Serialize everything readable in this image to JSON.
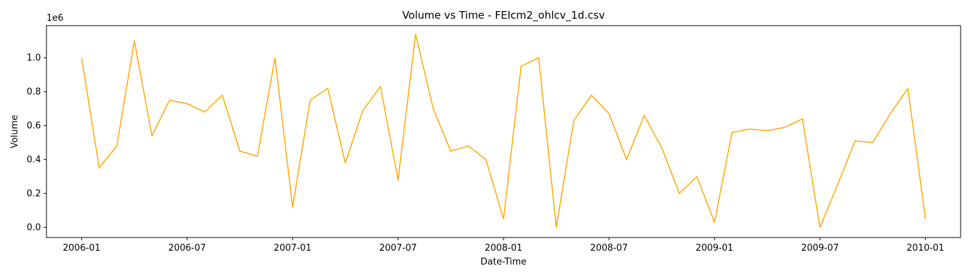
{
  "chart_data": {
    "type": "line",
    "title": "Volume vs Time - FEIcm2_ohlcv_1d.csv",
    "x_label": "Date-Time",
    "y_label": "Volume",
    "y_offset_label": "1e6",
    "x": [
      "2006-01",
      "2006-02",
      "2006-03",
      "2006-04",
      "2006-05",
      "2006-06",
      "2006-07",
      "2006-08",
      "2006-09",
      "2006-10",
      "2006-11",
      "2006-12",
      "2007-01",
      "2007-02",
      "2007-03",
      "2007-04",
      "2007-05",
      "2007-06",
      "2007-07",
      "2007-08",
      "2007-09",
      "2007-10",
      "2007-11",
      "2007-12",
      "2008-01",
      "2008-02",
      "2008-03",
      "2008-04",
      "2008-05",
      "2008-06",
      "2008-07",
      "2008-08",
      "2008-09",
      "2008-10",
      "2008-11",
      "2008-12",
      "2009-01",
      "2009-02",
      "2009-03",
      "2009-04",
      "2009-05",
      "2009-06",
      "2009-07",
      "2009-08",
      "2009-09",
      "2009-10",
      "2009-11",
      "2009-12",
      "2010-01"
    ],
    "series": [
      {
        "name": "Volume",
        "color": "#ffa500",
        "values": [
          1000000,
          350000,
          480000,
          1100000,
          540000,
          750000,
          730000,
          680000,
          780000,
          450000,
          420000,
          1000000,
          120000,
          750000,
          820000,
          380000,
          690000,
          830000,
          280000,
          1140000,
          700000,
          450000,
          480000,
          400000,
          50000,
          950000,
          1000000,
          0,
          630000,
          780000,
          670000,
          400000,
          660000,
          470000,
          200000,
          300000,
          30000,
          560000,
          580000,
          570000,
          590000,
          640000,
          0,
          250000,
          510000,
          500000,
          670000,
          820000,
          50000
        ]
      }
    ],
    "xlim": [
      "2005-11",
      "2010-03"
    ],
    "xticks": [
      "2006-01",
      "2006-07",
      "2007-01",
      "2007-07",
      "2008-01",
      "2008-07",
      "2009-01",
      "2009-07",
      "2010-01"
    ],
    "ylim": [
      -60000,
      1190000
    ],
    "yticks": [
      {
        "value": 0,
        "label": "0.0"
      },
      {
        "value": 200000,
        "label": "0.2"
      },
      {
        "value": 400000,
        "label": "0.4"
      },
      {
        "value": 600000,
        "label": "0.6"
      },
      {
        "value": 800000,
        "label": "0.8"
      },
      {
        "value": 1000000,
        "label": "1.0"
      }
    ],
    "grid": false
  }
}
